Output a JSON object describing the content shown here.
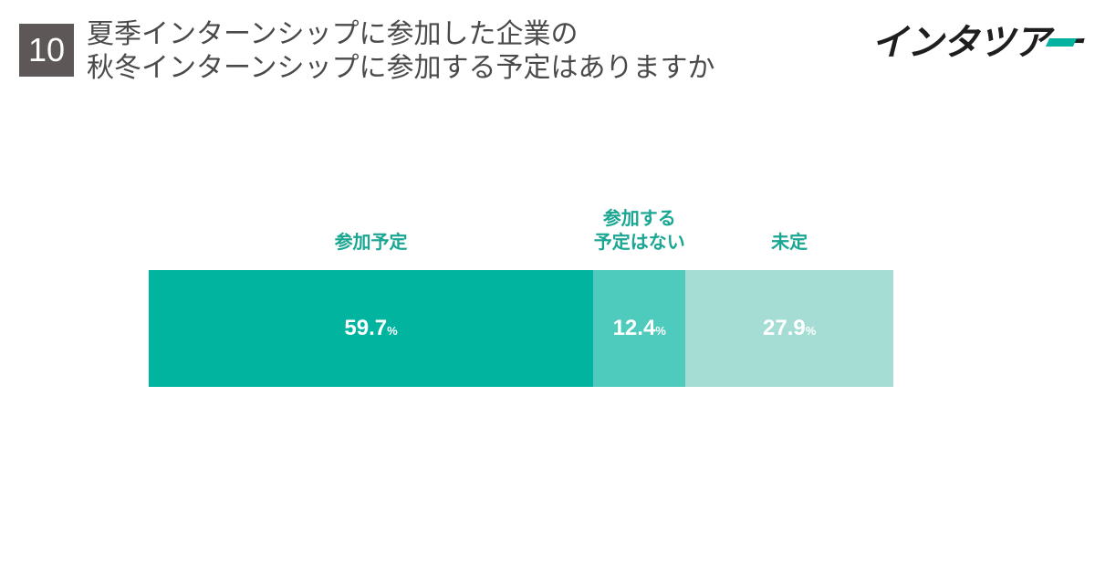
{
  "question_number": "10",
  "title_lines": [
    "夏季インターンシップに参加した企業の",
    "秋冬インターンシップに参加する予定はありますか"
  ],
  "logo": {
    "text": "インタツアー"
  },
  "chart_data": {
    "type": "bar",
    "orientation": "horizontal-stacked-100",
    "categories": [
      "参加予定",
      "参加する\n予定はない",
      "未定"
    ],
    "values": [
      59.7,
      12.4,
      27.9
    ],
    "value_labels": [
      "59.7",
      "12.4",
      "27.9"
    ],
    "unit": "%",
    "colors": [
      "#00b4a0",
      "#4ecbbd",
      "#a5ddd5"
    ],
    "xlim": [
      0,
      100
    ],
    "legend": "labels-above-segments",
    "grid": false
  }
}
